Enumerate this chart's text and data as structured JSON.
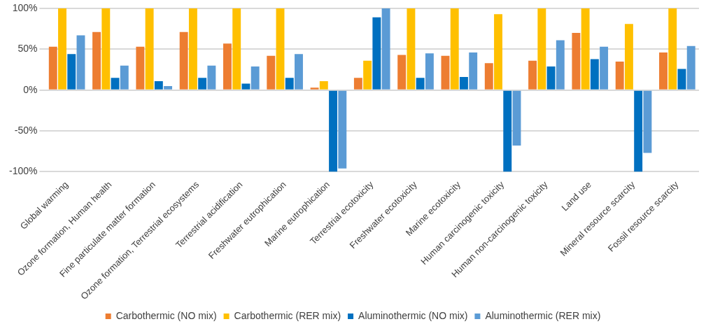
{
  "chart_data": {
    "type": "bar",
    "categories": [
      "Global warming",
      "Ozone formation, Human health",
      "Fine particulate matter formation",
      "Ozone formation, Terrestrial ecosystems",
      "Terrestrial acidification",
      "Freshwater eutrophication",
      "Marine eutrophication",
      "Terrestrial ecotoxicity",
      "Freshwater ecotoxicity",
      "Marine ecotoxicity",
      "Human carcinogenic toxicity",
      "Human non-carcinogenic toxicity",
      "Land use",
      "Mineral resource scarcity",
      "Fossil resource scarcity"
    ],
    "series": [
      {
        "name": "Carbothermic (NO mix)",
        "color": "#ed7d31",
        "values": [
          53,
          71,
          53,
          71,
          57,
          42,
          3,
          15,
          43,
          42,
          33,
          36,
          70,
          35,
          46
        ]
      },
      {
        "name": "Carbothermic (RER mix)",
        "color": "#ffc000",
        "values": [
          100,
          100,
          100,
          100,
          100,
          100,
          11,
          36,
          100,
          100,
          93,
          100,
          100,
          81,
          100
        ]
      },
      {
        "name": "Aluminothermic (NO mix)",
        "color": "#0070c0",
        "values": [
          44,
          15,
          11,
          15,
          8,
          15,
          -100,
          89,
          15,
          16,
          -100,
          29,
          38,
          -100,
          26
        ]
      },
      {
        "name": "Aluminothermic (RER mix)",
        "color": "#5b9bd5",
        "values": [
          67,
          30,
          5,
          30,
          29,
          44,
          -96,
          100,
          45,
          46,
          -68,
          61,
          53,
          -77,
          54
        ]
      }
    ],
    "ylim": [
      -100,
      100
    ],
    "yticks": [
      {
        "value": -100,
        "label": "-100%"
      },
      {
        "value": -50,
        "label": "-50%"
      },
      {
        "value": 0,
        "label": "0%"
      },
      {
        "value": 50,
        "label": "50%"
      },
      {
        "value": 100,
        "label": "100%"
      }
    ],
    "grid": "y",
    "legend": "bottom"
  }
}
